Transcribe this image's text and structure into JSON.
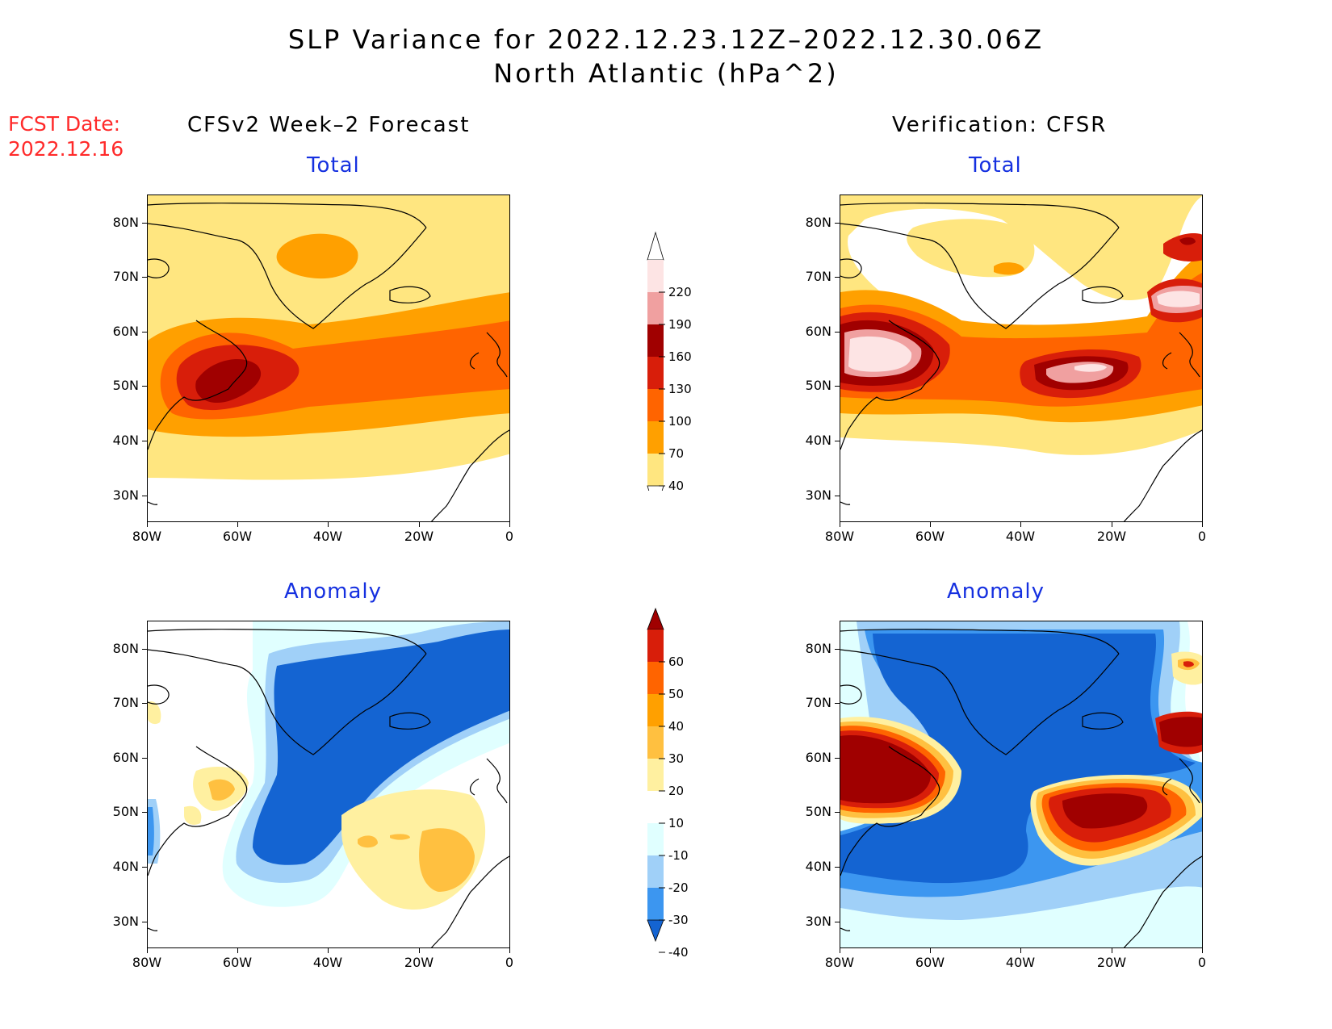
{
  "header": {
    "title_line1": "SLP Variance for 2022.12.23.12Z–2022.12.30.06Z",
    "title_line2": "North Atlantic (hPa^2)",
    "fcst_line1": "FCST Date:",
    "fcst_line2": "2022.12.16"
  },
  "columns": {
    "left": "CFSv2 Week–2 Forecast",
    "right": "Verification: CFSR"
  },
  "panels": {
    "top_left": "Total",
    "top_right": "Total",
    "bottom_left": "Anomaly",
    "bottom_right": "Anomaly"
  },
  "axes": {
    "lat_labels": [
      "80N",
      "70N",
      "60N",
      "50N",
      "40N",
      "30N"
    ],
    "lon_labels": [
      "80W",
      "60W",
      "40W",
      "20W",
      "0"
    ]
  },
  "colorbars": {
    "total": {
      "labels": [
        "220",
        "190",
        "160",
        "130",
        "100",
        "70",
        "40"
      ],
      "colors": [
        "#fde4e4",
        "#f0a0a0",
        "#a00000",
        "#d81e0a",
        "#ff6400",
        "#ffa000",
        "#ffe680"
      ]
    },
    "anomaly": {
      "labels": [
        "60",
        "50",
        "40",
        "30",
        "20",
        "10",
        "-10",
        "-20",
        "-30",
        "-40"
      ],
      "colors": [
        "#a00000",
        "#d81e0a",
        "#ff6400",
        "#ffa000",
        "#ffc040",
        "#fff0a0",
        "#ffffff",
        "#e0ffff",
        "#a0d0f8",
        "#3c96f0",
        "#1464d2"
      ]
    }
  },
  "palette": {
    "coast": "#000000",
    "title_blue": "#1530e0",
    "fcst_red": "#ff2a2a"
  }
}
